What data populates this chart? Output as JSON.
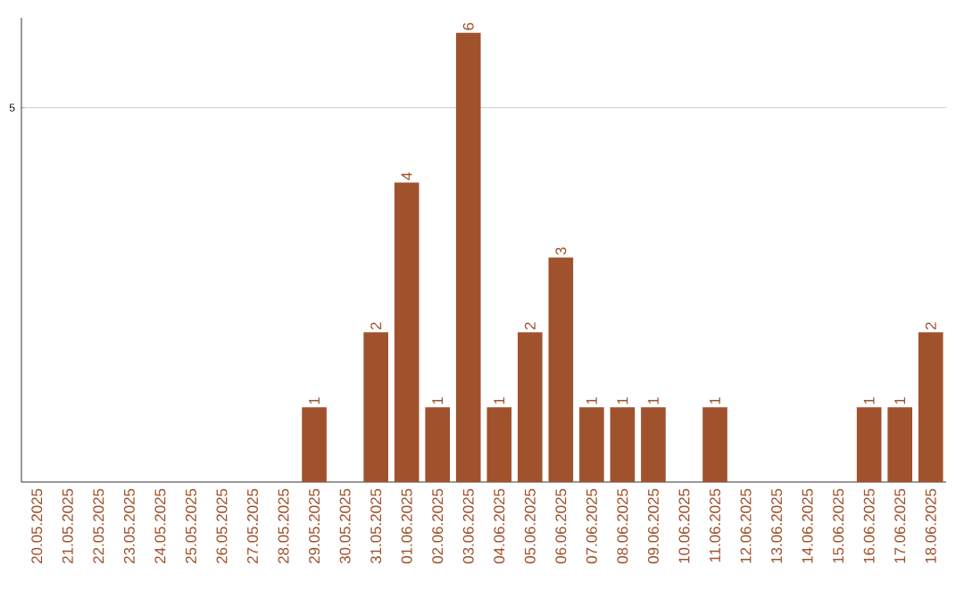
{
  "chart_data": {
    "type": "bar",
    "color": "#a0522d",
    "categories": [
      "20.05.2025",
      "21.05.2025",
      "22.05.2025",
      "23.05.2025",
      "24.05.2025",
      "25.05.2025",
      "26.05.2025",
      "27.05.2025",
      "28.05.2025",
      "29.05.2025",
      "30.05.2025",
      "31.05.2025",
      "01.06.2025",
      "02.06.2025",
      "03.06.2025",
      "04.06.2025",
      "05.06.2025",
      "06.06.2025",
      "07.06.2025",
      "08.06.2025",
      "09.06.2025",
      "10.06.2025",
      "11.06.2025",
      "12.06.2025",
      "13.06.2025",
      "14.06.2025",
      "15.06.2025",
      "16.06.2025",
      "17.06.2025",
      "18.06.2025"
    ],
    "values": [
      0,
      0,
      0,
      0,
      0,
      0,
      0,
      0,
      0,
      1,
      0,
      2,
      4,
      1,
      6,
      1,
      2,
      3,
      1,
      1,
      1,
      0,
      1,
      0,
      0,
      0,
      0,
      1,
      1,
      2
    ],
    "value_labels": [
      null,
      null,
      null,
      null,
      null,
      null,
      null,
      null,
      null,
      "1",
      null,
      "2",
      "4",
      "1",
      "6",
      "1",
      "2",
      "3",
      "1",
      "1",
      "1",
      null,
      "1",
      null,
      null,
      null,
      null,
      "1",
      "1",
      "2"
    ],
    "ylim": [
      0,
      6.2
    ],
    "yticks": [
      5
    ],
    "grid": "y"
  }
}
